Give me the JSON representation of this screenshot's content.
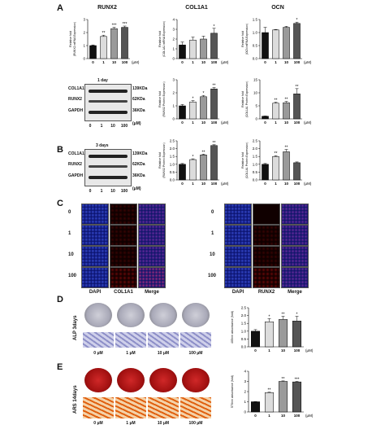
{
  "panels": {
    "A": "A",
    "B": "B",
    "C": "C",
    "D": "D",
    "E": "E"
  },
  "chart_titles": {
    "runx2": "RUNX2",
    "col1a1": "COL1A1",
    "ocn": "OCN"
  },
  "unit": "(μM)",
  "ylabel": "Relative fold",
  "ylabel_mrna_runx2": "(RUNX2 mRNA Expression)",
  "ylabel_mrna_col1a1": "(COL1A1 mRNA Expression)",
  "ylabel_mrna_ocn": "(OCN mRNA Expression)",
  "ylabel_prot_runx2": "(RUNX2 Protein Expression)",
  "ylabel_prot_col1a1": "(COL1A1 Protein Expression)",
  "ylabel_alp": "405nm absorbance (fold)",
  "ylabel_ars": "570nm absorbance (fold)",
  "western": {
    "a": {
      "time": "1 day",
      "proteins": [
        "COL1A1",
        "RUNX2",
        "GAPDH"
      ],
      "sizes": [
        "139KDa",
        "62KDa",
        "36KDa"
      ],
      "unit": "(μM)",
      "lanes": [
        "0",
        "1",
        "10",
        "100"
      ]
    },
    "b": {
      "time": "3 days",
      "proteins": [
        "COL1A1",
        "RUNX2",
        "GAPDH"
      ],
      "sizes": [
        "139KDa",
        "62KDa",
        "36KDa"
      ],
      "unit": "(μM)",
      "lanes": [
        "0",
        "1",
        "10",
        "100"
      ]
    }
  },
  "if": {
    "rows": [
      "0",
      "1",
      "10",
      "100"
    ],
    "left_cols": [
      "DAPI",
      "COL1A1",
      "Merge"
    ],
    "right_cols": [
      "DAPI",
      "RUNX2",
      "Merge"
    ]
  },
  "alp": {
    "side": "ALP  3days",
    "concs": [
      "0 μM",
      "1 μM",
      "10 μM",
      "100 μM"
    ]
  },
  "ars": {
    "side": "ARS  14days",
    "concs": [
      "0 μM",
      "1 μM",
      "10 μM",
      "100 μM"
    ]
  },
  "colors": {
    "c0": "#111111",
    "c1": "#dcdcdc",
    "c2": "#9a9a9a",
    "c3": "#555555"
  },
  "chart_data": [
    {
      "type": "bar",
      "id": "a_runx2_mrna",
      "title": "RUNX2",
      "categories": [
        "0",
        "1",
        "10",
        "100"
      ],
      "values": [
        1.0,
        1.7,
        2.3,
        2.4
      ],
      "errors": [
        0.05,
        0.1,
        0.1,
        0.1
      ],
      "sig": [
        "",
        "**",
        "***",
        "***"
      ],
      "ylim": [
        0,
        3
      ],
      "yticks": [
        "0",
        "1",
        "2",
        "3"
      ]
    },
    {
      "type": "bar",
      "id": "a_col1a1_mrna",
      "title": "COL1A1",
      "categories": [
        "0",
        "1",
        "10",
        "100"
      ],
      "values": [
        1.4,
        1.9,
        2.0,
        2.6
      ],
      "errors": [
        0.3,
        0.3,
        0.3,
        0.5
      ],
      "sig": [
        "",
        "",
        "",
        "*"
      ],
      "ylim": [
        0,
        4
      ],
      "yticks": [
        "0",
        "1",
        "2",
        "3",
        "4"
      ]
    },
    {
      "type": "bar",
      "id": "a_ocn_mrna",
      "title": "OCN",
      "categories": [
        "0",
        "1",
        "10",
        "100"
      ],
      "values": [
        1.0,
        1.1,
        1.2,
        1.35
      ],
      "errors": [
        0.2,
        0.02,
        0.04,
        0.05
      ],
      "sig": [
        "",
        "",
        "",
        "*"
      ],
      "ylim": [
        0,
        1.5
      ],
      "yticks": [
        "0.0",
        "0.5",
        "1.0",
        "1.5"
      ]
    },
    {
      "type": "bar",
      "id": "a_runx2_prot",
      "categories": [
        "0",
        "1",
        "10",
        "100"
      ],
      "values": [
        1.0,
        1.3,
        1.7,
        2.3
      ],
      "errors": [
        0.1,
        0.1,
        0.1,
        0.1
      ],
      "sig": [
        "",
        "*",
        "*",
        "**"
      ],
      "ylim": [
        0,
        3
      ],
      "yticks": [
        "0",
        "1",
        "2",
        "3"
      ]
    },
    {
      "type": "bar",
      "id": "a_col1a1_prot",
      "categories": [
        "0",
        "1",
        "10",
        "100"
      ],
      "values": [
        1.0,
        6.0,
        6.2,
        9.6
      ],
      "errors": [
        0.1,
        0.4,
        0.5,
        2.0
      ],
      "sig": [
        "",
        "**",
        "**",
        "**"
      ],
      "ylim": [
        0,
        15
      ],
      "yticks": [
        "0",
        "5",
        "10",
        "15"
      ]
    },
    {
      "type": "bar",
      "id": "b_runx2_prot",
      "categories": [
        "0",
        "1",
        "10",
        "100"
      ],
      "values": [
        1.0,
        1.3,
        1.6,
        2.2
      ],
      "errors": [
        0.05,
        0.05,
        0.05,
        0.05
      ],
      "sig": [
        "",
        "*",
        "**",
        "**"
      ],
      "ylim": [
        0,
        2.5
      ],
      "yticks": [
        "0.0",
        "0.5",
        "1.0",
        "1.5",
        "2.0",
        "2.5"
      ]
    },
    {
      "type": "bar",
      "id": "b_col1a1_prot",
      "categories": [
        "0",
        "1",
        "10",
        "100"
      ],
      "values": [
        1.0,
        1.5,
        1.8,
        1.1
      ],
      "errors": [
        0.05,
        0.05,
        0.15,
        0.05
      ],
      "sig": [
        "",
        "**",
        "**",
        ""
      ],
      "ylim": [
        0,
        2.5
      ],
      "yticks": [
        "0.0",
        "0.5",
        "1.0",
        "1.5",
        "2.0",
        "2.5"
      ]
    },
    {
      "type": "bar",
      "id": "d_alp",
      "categories": [
        "0",
        "1",
        "10",
        "100"
      ],
      "values": [
        1.0,
        1.6,
        1.75,
        1.65
      ],
      "errors": [
        0.1,
        0.2,
        0.2,
        0.3
      ],
      "sig": [
        "",
        "*",
        "**",
        "*"
      ],
      "ylim": [
        0,
        2.5
      ],
      "yticks": [
        "0.0",
        "0.5",
        "1.0",
        "1.5",
        "2.0",
        "2.5"
      ]
    },
    {
      "type": "bar",
      "id": "e_ars",
      "categories": [
        "0",
        "1",
        "10",
        "100"
      ],
      "values": [
        1.0,
        1.9,
        3.0,
        2.95
      ],
      "errors": [
        0.02,
        0.05,
        0.05,
        0.05
      ],
      "sig": [
        "",
        "**",
        "**",
        "***"
      ],
      "ylim": [
        0,
        4
      ],
      "yticks": [
        "0",
        "1",
        "2",
        "3",
        "4"
      ]
    }
  ]
}
